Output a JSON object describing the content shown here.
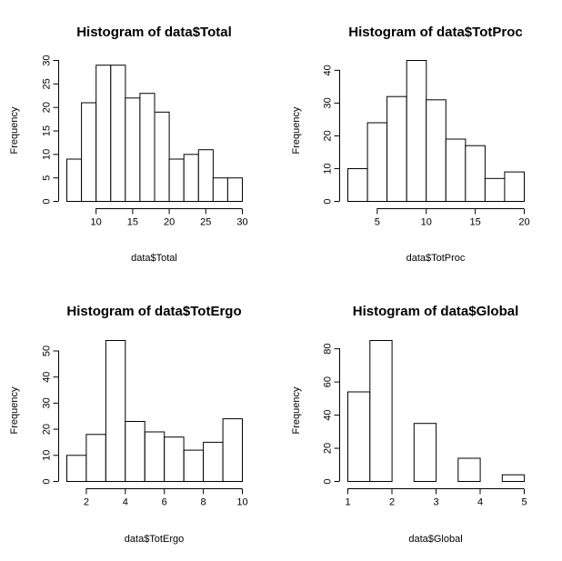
{
  "chart_data": [
    {
      "type": "bar",
      "title": "Histogram of data$Total",
      "xlabel": "data$Total",
      "ylabel": "Frequency",
      "bin_edges": [
        6,
        8,
        10,
        12,
        14,
        16,
        18,
        20,
        22,
        24,
        26,
        28,
        30
      ],
      "values": [
        9,
        21,
        29,
        29,
        22,
        23,
        19,
        9,
        10,
        11,
        5,
        5
      ],
      "x_ticks": [
        10,
        15,
        20,
        25,
        30
      ],
      "y_ticks": [
        0,
        5,
        10,
        15,
        20,
        25,
        30
      ],
      "xlim": [
        6,
        30
      ],
      "ylim": [
        0,
        30
      ]
    },
    {
      "type": "bar",
      "title": "Histogram of data$TotProc",
      "xlabel": "data$TotProc",
      "ylabel": "Frequency",
      "bin_edges": [
        2,
        4,
        6,
        8,
        10,
        12,
        14,
        16,
        18,
        20
      ],
      "values": [
        10,
        24,
        32,
        43,
        31,
        19,
        17,
        7,
        9
      ],
      "x_ticks": [
        5,
        10,
        15,
        20
      ],
      "y_ticks": [
        0,
        10,
        20,
        30,
        40
      ],
      "xlim": [
        2,
        20
      ],
      "ylim": [
        0,
        43
      ]
    },
    {
      "type": "bar",
      "title": "Histogram of data$TotErgo",
      "xlabel": "data$TotErgo",
      "ylabel": "Frequency",
      "bin_edges": [
        1,
        2,
        3,
        4,
        5,
        6,
        7,
        8,
        9,
        10
      ],
      "values": [
        10,
        18,
        54,
        23,
        19,
        17,
        12,
        15,
        24
      ],
      "x_ticks": [
        2,
        4,
        6,
        8,
        10
      ],
      "y_ticks": [
        0,
        10,
        20,
        30,
        40,
        50
      ],
      "xlim": [
        1,
        10
      ],
      "ylim": [
        0,
        54
      ]
    },
    {
      "type": "bar",
      "title": "Histogram of data$Global",
      "xlabel": "data$Global",
      "ylabel": "Frequency",
      "bin_edges": [
        1,
        1.5,
        2,
        2.5,
        3,
        3.5,
        4,
        4.5,
        5
      ],
      "values": [
        54,
        85,
        0,
        35,
        0,
        14,
        0,
        4
      ],
      "x_ticks": [
        1,
        2,
        3,
        4,
        5
      ],
      "y_ticks": [
        0,
        20,
        40,
        60,
        80
      ],
      "xlim": [
        1,
        5
      ],
      "ylim": [
        0,
        85
      ]
    }
  ]
}
